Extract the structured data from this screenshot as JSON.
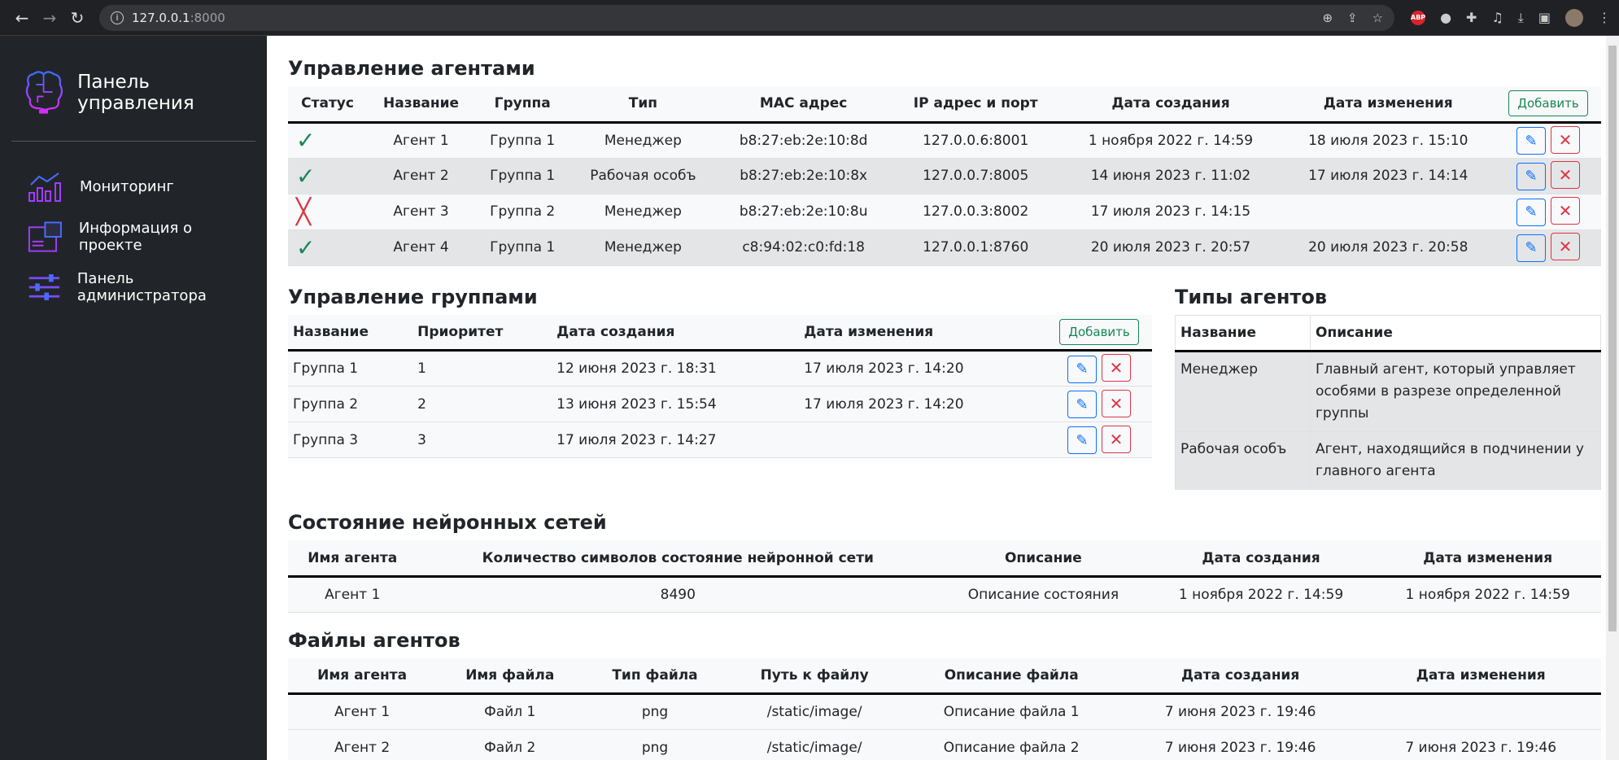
{
  "browser": {
    "url_host": "127.0.0.1",
    "url_port": ":8000"
  },
  "sidebar": {
    "title": "Панель управления",
    "items": [
      {
        "label": "Мониторинг",
        "icon": "chart-icon"
      },
      {
        "label": "Информация о проекте",
        "icon": "info-window-icon"
      },
      {
        "label": "Панель администратора",
        "icon": "sliders-icon"
      }
    ]
  },
  "agents": {
    "title": "Управление агентами",
    "add_label": "Добавить",
    "columns": [
      "Статус",
      "Название",
      "Группа",
      "Тип",
      "MAC адрес",
      "IP адрес и порт",
      "Дата создания",
      "Дата изменения"
    ],
    "rows": [
      {
        "status": "active",
        "name": "Агент 1",
        "group": "Группа 1",
        "type": "Менеджер",
        "mac": "b8:27:eb:2e:10:8d",
        "ip": "127.0.0.6:8001",
        "created": "1 ноября 2022 г. 14:59",
        "modified": "18 июля 2023 г. 15:10"
      },
      {
        "status": "active",
        "name": "Агент 2",
        "group": "Группа 1",
        "type": "Рабочая особъ",
        "mac": "b8:27:eb:2e:10:8x",
        "ip": "127.0.0.7:8005",
        "created": "14 июня 2023 г. 11:02",
        "modified": "17 июля 2023 г. 14:14"
      },
      {
        "status": "inactive",
        "name": "Агент 3",
        "group": "Группа 2",
        "type": "Менеджер",
        "mac": "b8:27:eb:2e:10:8u",
        "ip": "127.0.0.3:8002",
        "created": "17 июля 2023 г. 14:15",
        "modified": ""
      },
      {
        "status": "active",
        "name": "Агент 4",
        "group": "Группа 1",
        "type": "Менеджер",
        "mac": "c8:94:02:c0:fd:18",
        "ip": "127.0.0.1:8760",
        "created": "20 июля 2023 г. 20:57",
        "modified": "20 июля 2023 г. 20:58"
      }
    ]
  },
  "groups": {
    "title": "Управление группами",
    "add_label": "Добавить",
    "columns": [
      "Название",
      "Приоритет",
      "Дата создания",
      "Дата изменения"
    ],
    "rows": [
      {
        "name": "Группа 1",
        "priority": "1",
        "created": "12 июня 2023 г. 18:31",
        "modified": "17 июля 2023 г. 14:20"
      },
      {
        "name": "Группа 2",
        "priority": "2",
        "created": "13 июня 2023 г. 15:54",
        "modified": "17 июля 2023 г. 14:20"
      },
      {
        "name": "Группа 3",
        "priority": "3",
        "created": "17 июля 2023 г. 14:27",
        "modified": ""
      }
    ]
  },
  "types": {
    "title": "Типы агентов",
    "columns": [
      "Название",
      "Описание"
    ],
    "rows": [
      {
        "name": "Менеджер",
        "desc": "Главный агент, который управляет особями в разрезе определенной группы"
      },
      {
        "name": "Рабочая особъ",
        "desc": "Агент, находящийся в подчинении у главного агента"
      }
    ]
  },
  "states": {
    "title": "Состояние нейронных сетей",
    "columns": [
      "Имя агента",
      "Количество символов состояние нейронной сети",
      "Описание",
      "Дата создания",
      "Дата изменения"
    ],
    "rows": [
      {
        "agent": "Агент 1",
        "chars": "8490",
        "desc": "Описание состояния",
        "created": "1 ноября 2022 г. 14:59",
        "modified": "1 ноября 2022 г. 14:59"
      }
    ]
  },
  "files": {
    "title": "Файлы агентов",
    "columns": [
      "Имя агента",
      "Имя файла",
      "Тип файла",
      "Путь к файлу",
      "Описание файла",
      "Дата создания",
      "Дата изменения"
    ],
    "rows": [
      {
        "agent": "Агент 1",
        "file": "Файл 1",
        "type": "png",
        "path": "/static/image/",
        "desc": "Описание файла 1",
        "created": "7 июня 2023 г. 19:46",
        "modified": ""
      },
      {
        "agent": "Агент 2",
        "file": "Файл 2",
        "type": "png",
        "path": "/static/image/",
        "desc": "Описание файла 2",
        "created": "7 июня 2023 г. 19:46",
        "modified": "7 июня 2023 г. 19:46"
      }
    ]
  },
  "colors": {
    "success": "#198754",
    "danger": "#dc3545",
    "primary": "#0d6efd",
    "sidebar": "#212529"
  }
}
